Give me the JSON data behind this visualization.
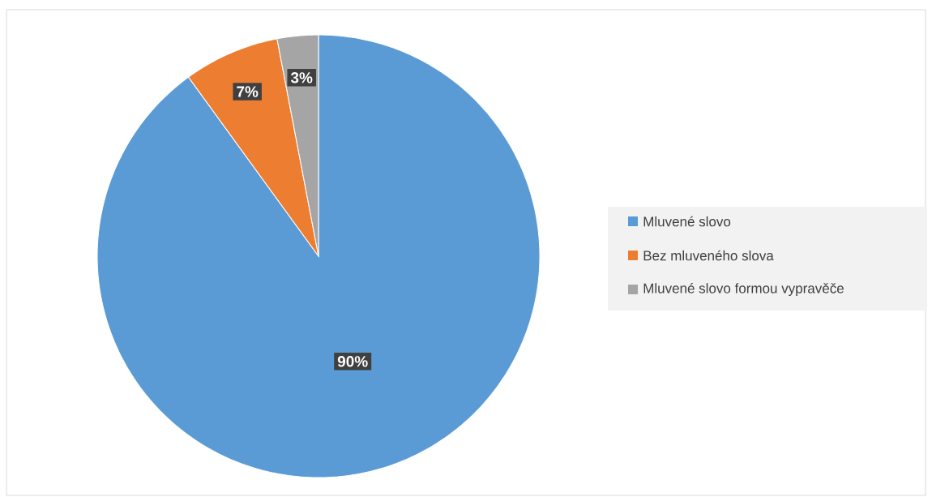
{
  "chart_data": {
    "type": "pie",
    "categories": [
      "Mluvené slovo",
      "Bez mluveného slova",
      "Mluvené slovo formou vypravěče"
    ],
    "values": [
      90,
      7,
      3
    ],
    "colors": [
      "#5b9bd5",
      "#ed7d31",
      "#a5a5a5"
    ],
    "value_labels": [
      "90%",
      "7%",
      "3%"
    ],
    "legend": "right"
  }
}
